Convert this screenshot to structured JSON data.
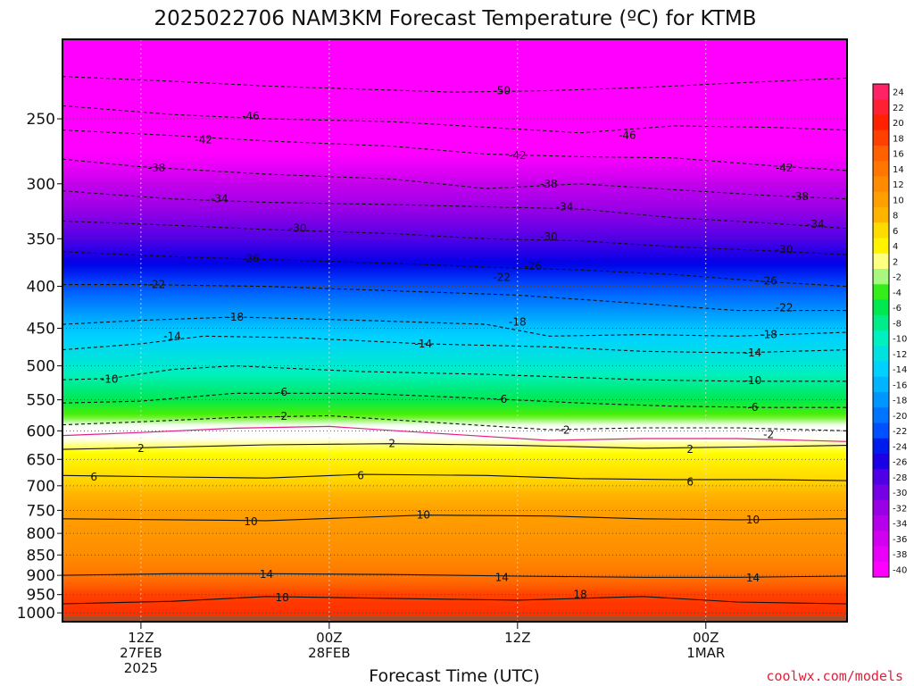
{
  "chart_data": {
    "type": "heatmap",
    "title": "2025022706 NAM3KM Forecast Temperature (ºC) for KTMB",
    "xlabel": "Forecast Time (UTC)",
    "ylabel": "",
    "y_scale": "log",
    "y_inverted": true,
    "ylim": [
      1025,
      200
    ],
    "y_ticks": [
      250,
      300,
      350,
      400,
      450,
      500,
      550,
      600,
      650,
      700,
      750,
      800,
      850,
      900,
      950,
      1000
    ],
    "xlim": [
      7,
      57
    ],
    "x_ticks": [
      {
        "hour": 12,
        "lines": [
          "12Z",
          "27FEB",
          "2025"
        ]
      },
      {
        "hour": 24,
        "lines": [
          "00Z",
          "28FEB"
        ]
      },
      {
        "hour": 36,
        "lines": [
          "12Z"
        ]
      },
      {
        "hour": 48,
        "lines": [
          "00Z",
          "1MAR"
        ]
      },
      {
        "hour": 60,
        "lines": [
          "12Z"
        ]
      }
    ],
    "grid": true,
    "colorbar_labels": [
      "24",
      "22",
      "20",
      "18",
      "16",
      "14",
      "12",
      "10",
      "8",
      "6",
      "4",
      "2",
      "-2",
      "-4",
      "-6",
      "-8",
      "-10",
      "-12",
      "-14",
      "-16",
      "-18",
      "-20",
      "-22",
      "-24",
      "-26",
      "-28",
      "-30",
      "-32",
      "-34",
      "-36",
      "-38",
      "-40"
    ],
    "colorscale": [
      {
        "t": -40,
        "color": "#ff00ff"
      },
      {
        "t": -36,
        "color": "#d200f0"
      },
      {
        "t": -32,
        "color": "#9a00e6"
      },
      {
        "t": -28,
        "color": "#5000e6"
      },
      {
        "t": -25,
        "color": "#0000e6"
      },
      {
        "t": -22,
        "color": "#0050ff"
      },
      {
        "t": -18,
        "color": "#0096ff"
      },
      {
        "t": -14,
        "color": "#00d2ff"
      },
      {
        "t": -10,
        "color": "#00f0c0"
      },
      {
        "t": -6,
        "color": "#00e850"
      },
      {
        "t": -3,
        "color": "#50f000"
      },
      {
        "t": -1,
        "color": "#ffffff"
      },
      {
        "t": 1,
        "color": "#ffffff"
      },
      {
        "t": 3,
        "color": "#ffff00"
      },
      {
        "t": 6,
        "color": "#ffdc00"
      },
      {
        "t": 8,
        "color": "#ffb400"
      },
      {
        "t": 12,
        "color": "#ff8c00"
      },
      {
        "t": 16,
        "color": "#ff6000"
      },
      {
        "t": 20,
        "color": "#ff2000"
      },
      {
        "t": 24,
        "color": "#ff2266"
      }
    ],
    "profile_at_start": [
      {
        "p": 1000,
        "t": 19
      },
      {
        "p": 950,
        "t": 18
      },
      {
        "p": 900,
        "t": 14
      },
      {
        "p": 850,
        "t": 12
      },
      {
        "p": 800,
        "t": 11
      },
      {
        "p": 750,
        "t": 10
      },
      {
        "p": 700,
        "t": 7
      },
      {
        "p": 650,
        "t": 4
      },
      {
        "p": 600,
        "t": 0
      },
      {
        "p": 550,
        "t": -6
      },
      {
        "p": 500,
        "t": -11
      },
      {
        "p": 450,
        "t": -15
      },
      {
        "p": 400,
        "t": -22
      },
      {
        "p": 350,
        "t": -28
      },
      {
        "p": 300,
        "t": -35
      },
      {
        "p": 250,
        "t": -45
      },
      {
        "p": 200,
        "t": -52
      }
    ],
    "contours": [
      {
        "label": "-50",
        "pts": [
          [
            7,
            222
          ],
          [
            14,
            225
          ],
          [
            20,
            228
          ],
          [
            26,
            230
          ],
          [
            32,
            232
          ],
          [
            38,
            231
          ],
          [
            44,
            229
          ],
          [
            50,
            226
          ],
          [
            57,
            223
          ]
        ],
        "labels": [
          [
            35,
            231
          ]
        ]
      },
      {
        "label": "-46",
        "pts": [
          [
            7,
            241
          ],
          [
            14,
            247
          ],
          [
            20,
            250
          ],
          [
            28,
            252
          ],
          [
            34,
            256
          ],
          [
            40,
            260
          ],
          [
            46,
            255
          ],
          [
            52,
            256
          ],
          [
            57,
            258
          ]
        ],
        "labels": [
          [
            19,
            248
          ],
          [
            43,
            262
          ]
        ]
      },
      {
        "label": "-42",
        "pts": [
          [
            7,
            258
          ],
          [
            14,
            262
          ],
          [
            20,
            266
          ],
          [
            28,
            270
          ],
          [
            34,
            276
          ],
          [
            40,
            278
          ],
          [
            46,
            279
          ],
          [
            52,
            285
          ],
          [
            57,
            289
          ]
        ],
        "labels": [
          [
            16,
            265
          ],
          [
            36,
            277
          ],
          [
            53,
            287
          ]
        ]
      },
      {
        "label": "-38",
        "pts": [
          [
            7,
            280
          ],
          [
            12,
            286
          ],
          [
            20,
            292
          ],
          [
            28,
            296
          ],
          [
            34,
            304
          ],
          [
            40,
            300
          ],
          [
            46,
            305
          ],
          [
            52,
            310
          ],
          [
            57,
            313
          ]
        ],
        "labels": [
          [
            13,
            287
          ],
          [
            38,
            300
          ],
          [
            54,
            311
          ]
        ]
      },
      {
        "label": "-34",
        "pts": [
          [
            7,
            306
          ],
          [
            14,
            313
          ],
          [
            20,
            316
          ],
          [
            28,
            318
          ],
          [
            34,
            320
          ],
          [
            40,
            322
          ],
          [
            46,
            330
          ],
          [
            52,
            335
          ],
          [
            57,
            340
          ]
        ],
        "labels": [
          [
            17,
            313
          ],
          [
            39,
            320
          ],
          [
            55,
            336
          ]
        ]
      },
      {
        "label": "-30",
        "pts": [
          [
            7,
            333
          ],
          [
            14,
            337
          ],
          [
            20,
            341
          ],
          [
            28,
            345
          ],
          [
            34,
            350
          ],
          [
            40,
            352
          ],
          [
            46,
            358
          ],
          [
            52,
            362
          ],
          [
            57,
            366
          ]
        ],
        "labels": [
          [
            22,
            340
          ],
          [
            38,
            348
          ],
          [
            53,
            361
          ]
        ]
      },
      {
        "label": "-26",
        "pts": [
          [
            7,
            363
          ],
          [
            14,
            368
          ],
          [
            20,
            371
          ],
          [
            28,
            375
          ],
          [
            34,
            379
          ],
          [
            40,
            382
          ],
          [
            46,
            387
          ],
          [
            52,
            395
          ],
          [
            57,
            400
          ]
        ],
        "labels": [
          [
            19,
            370
          ],
          [
            37,
            378
          ],
          [
            52,
            394
          ]
        ]
      },
      {
        "label": "-22",
        "pts": [
          [
            7,
            398
          ],
          [
            12,
            398
          ],
          [
            20,
            400
          ],
          [
            28,
            405
          ],
          [
            36,
            410
          ],
          [
            44,
            420
          ],
          [
            50,
            428
          ],
          [
            57,
            428
          ]
        ],
        "labels": [
          [
            13,
            398
          ],
          [
            35,
            390
          ],
          [
            53,
            425
          ]
        ]
      },
      {
        "label": "-18",
        "pts": [
          [
            7,
            445
          ],
          [
            12,
            440
          ],
          [
            18,
            436
          ],
          [
            26,
            440
          ],
          [
            34,
            445
          ],
          [
            38,
            460
          ],
          [
            44,
            458
          ],
          [
            50,
            460
          ],
          [
            57,
            455
          ]
        ],
        "labels": [
          [
            18,
            436
          ],
          [
            36,
            442
          ],
          [
            52,
            458
          ]
        ]
      },
      {
        "label": "-14",
        "pts": [
          [
            7,
            478
          ],
          [
            12,
            470
          ],
          [
            16,
            460
          ],
          [
            22,
            462
          ],
          [
            30,
            470
          ],
          [
            38,
            474
          ],
          [
            44,
            480
          ],
          [
            50,
            482
          ],
          [
            57,
            478
          ]
        ],
        "labels": [
          [
            14,
            460
          ],
          [
            30,
            470
          ],
          [
            51,
            482
          ]
        ]
      },
      {
        "label": "-10",
        "pts": [
          [
            7,
            520
          ],
          [
            10,
            518
          ],
          [
            14,
            505
          ],
          [
            18,
            500
          ],
          [
            26,
            508
          ],
          [
            34,
            512
          ],
          [
            44,
            520
          ],
          [
            50,
            522
          ],
          [
            57,
            522
          ]
        ],
        "labels": [
          [
            10,
            519
          ],
          [
            51,
            521
          ]
        ]
      },
      {
        "label": "-6",
        "pts": [
          [
            7,
            555
          ],
          [
            12,
            552
          ],
          [
            18,
            540
          ],
          [
            26,
            540
          ],
          [
            34,
            548
          ],
          [
            40,
            555
          ],
          [
            46,
            560
          ],
          [
            52,
            562
          ],
          [
            57,
            562
          ]
        ],
        "labels": [
          [
            21,
            538
          ],
          [
            35,
            549
          ],
          [
            51,
            562
          ]
        ]
      },
      {
        "label": "-2",
        "pts": [
          [
            7,
            590
          ],
          [
            12,
            585
          ],
          [
            18,
            578
          ],
          [
            24,
            575
          ],
          [
            30,
            585
          ],
          [
            38,
            598
          ],
          [
            44,
            595
          ],
          [
            50,
            595
          ],
          [
            57,
            600
          ]
        ],
        "labels": [
          [
            21,
            576
          ],
          [
            39,
            599
          ],
          [
            52,
            606
          ]
        ]
      },
      {
        "label": "2",
        "pts": [
          [
            7,
            632
          ],
          [
            14,
            628
          ],
          [
            20,
            624
          ],
          [
            28,
            622
          ],
          [
            36,
            625
          ],
          [
            44,
            630
          ],
          [
            50,
            628
          ],
          [
            57,
            625
          ]
        ],
        "labels": [
          [
            12,
            630
          ],
          [
            28,
            622
          ],
          [
            47,
            632
          ]
        ]
      },
      {
        "label": "6",
        "pts": [
          [
            7,
            680
          ],
          [
            14,
            683
          ],
          [
            20,
            685
          ],
          [
            26,
            678
          ],
          [
            34,
            680
          ],
          [
            40,
            686
          ],
          [
            46,
            688
          ],
          [
            52,
            688
          ],
          [
            57,
            690
          ]
        ],
        "labels": [
          [
            9,
            683
          ],
          [
            26,
            680
          ],
          [
            47,
            692
          ]
        ]
      },
      {
        "label": "10",
        "pts": [
          [
            7,
            768
          ],
          [
            14,
            770
          ],
          [
            20,
            772
          ],
          [
            30,
            760
          ],
          [
            38,
            762
          ],
          [
            44,
            768
          ],
          [
            50,
            770
          ],
          [
            57,
            768
          ]
        ],
        "labels": [
          [
            19,
            774
          ],
          [
            30,
            760
          ],
          [
            51,
            770
          ]
        ]
      },
      {
        "label": "14",
        "pts": [
          [
            7,
            900
          ],
          [
            14,
            896
          ],
          [
            20,
            896
          ],
          [
            28,
            898
          ],
          [
            36,
            902
          ],
          [
            44,
            905
          ],
          [
            50,
            905
          ],
          [
            57,
            902
          ]
        ],
        "labels": [
          [
            20,
            897
          ],
          [
            35,
            905
          ],
          [
            51,
            907
          ]
        ]
      },
      {
        "label": "18",
        "pts": [
          [
            7,
            975
          ],
          [
            14,
            968
          ],
          [
            20,
            955
          ],
          [
            28,
            960
          ],
          [
            36,
            965
          ],
          [
            44,
            955
          ],
          [
            50,
            970
          ],
          [
            57,
            975
          ]
        ],
        "labels": [
          [
            21,
            958
          ],
          [
            40,
            950
          ]
        ]
      }
    ]
  },
  "credit": "coolwx.com/models"
}
